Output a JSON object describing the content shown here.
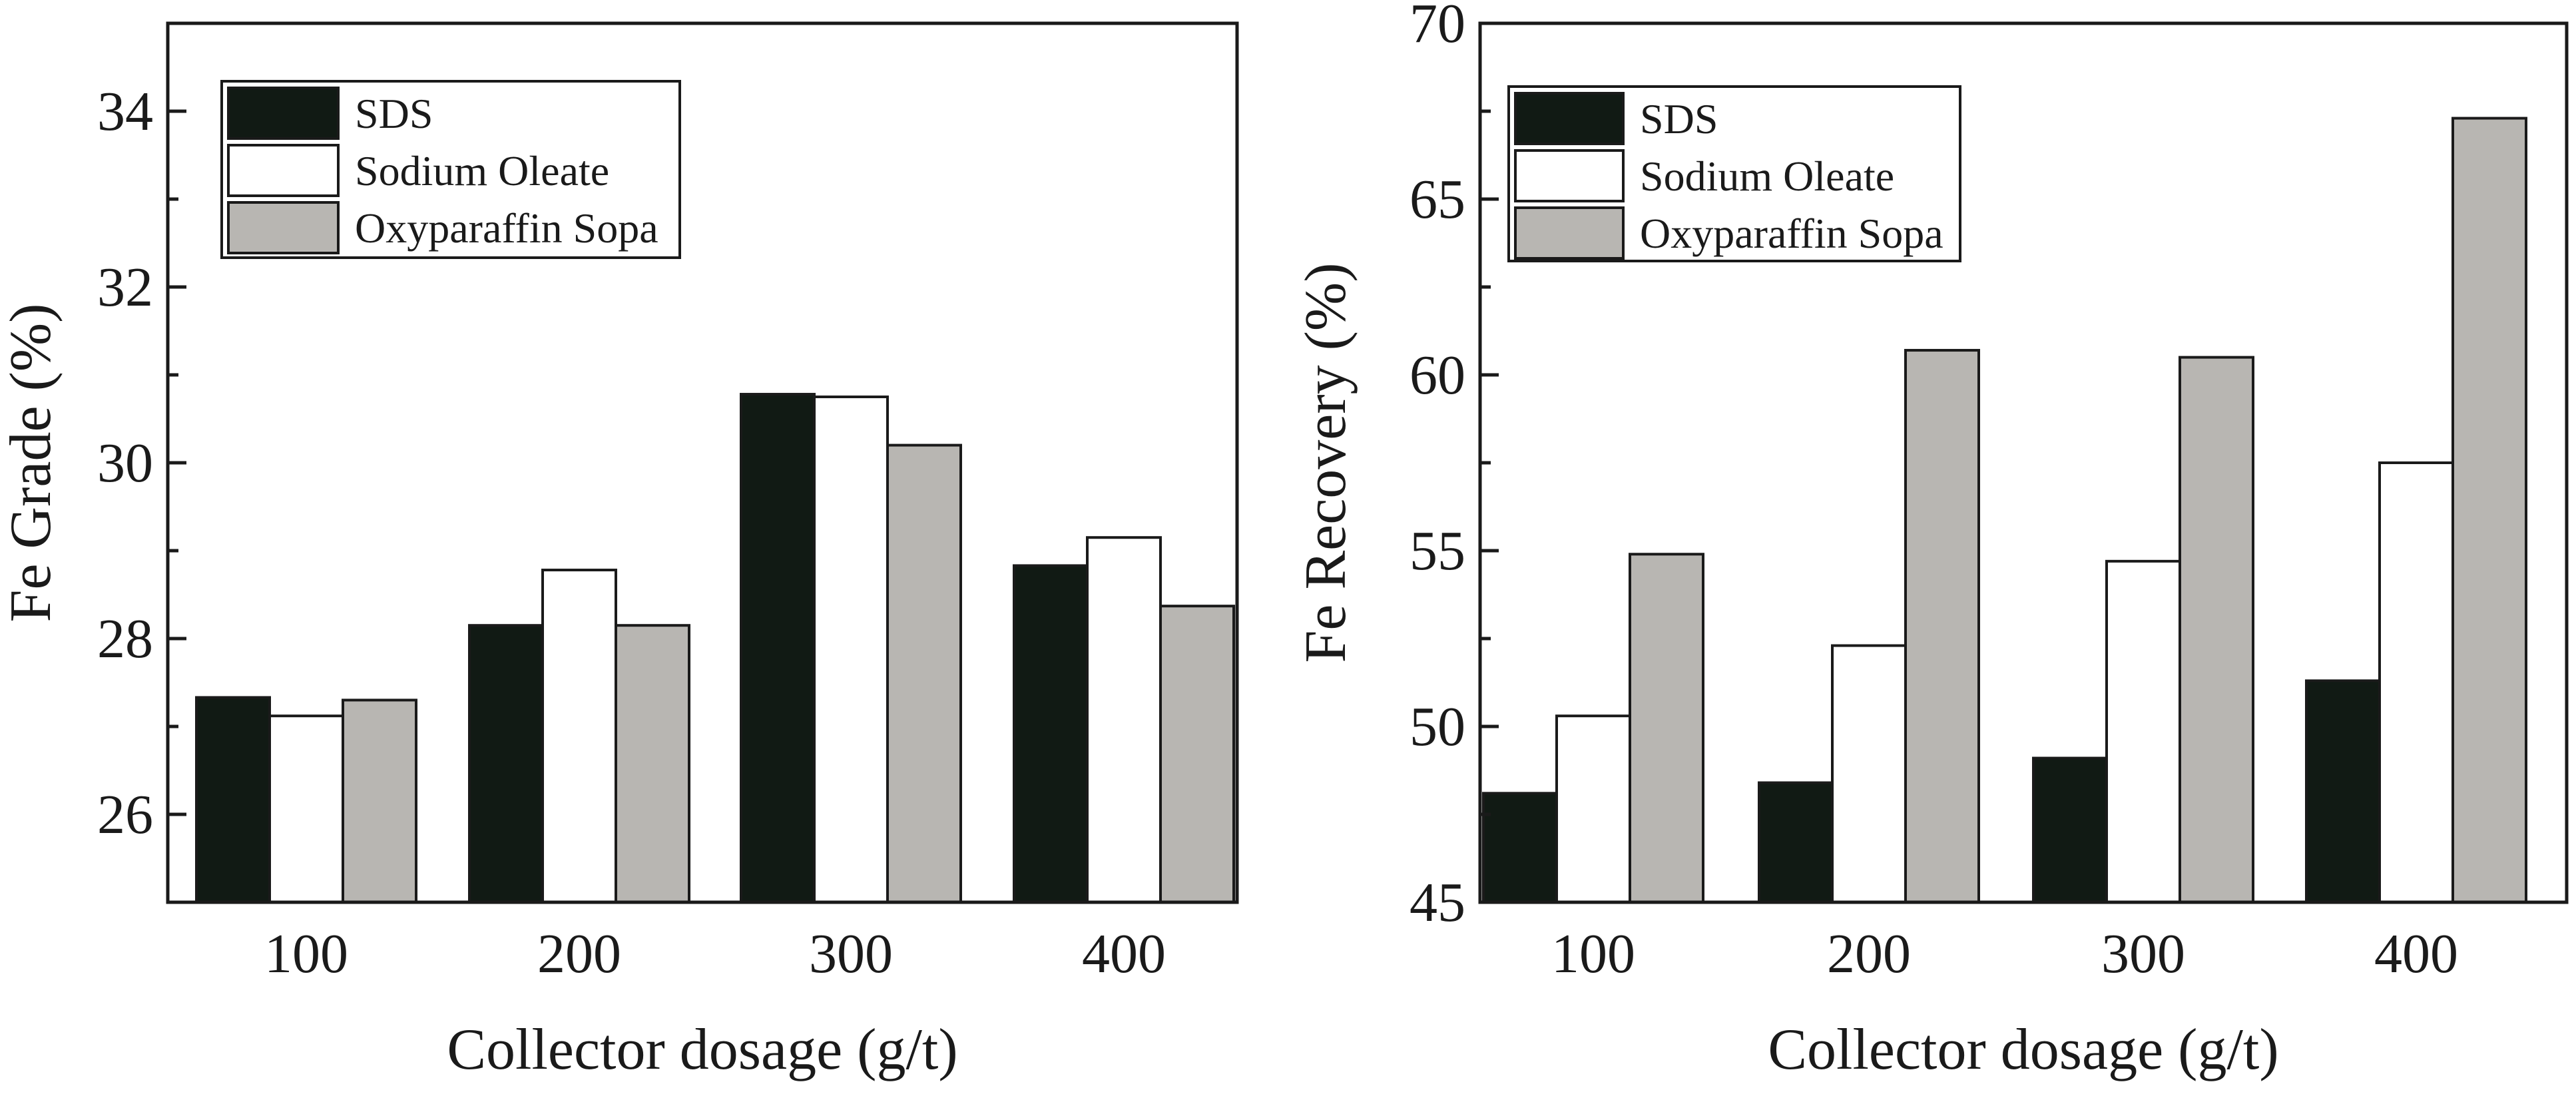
{
  "chart_data": [
    {
      "type": "bar",
      "title": "",
      "xlabel": "Collector dosage (g/t)",
      "ylabel": "Fe  Grade (%)",
      "categories": [
        "100",
        "200",
        "300",
        "400"
      ],
      "ylim": [
        25,
        35
      ],
      "yticks": [
        "26",
        "28",
        "30",
        "32",
        "34"
      ],
      "legend_position": "top-left",
      "series": [
        {
          "name": "SDS",
          "color": "#111a14",
          "values": [
            27.33,
            28.15,
            30.78,
            28.83
          ]
        },
        {
          "name": "Sodium Oleate",
          "color": "#ffffff",
          "values": [
            27.12,
            28.78,
            30.75,
            29.15
          ]
        },
        {
          "name": "Oxyparaffin Sopa",
          "color": "#b8b6b2",
          "values": [
            27.3,
            28.15,
            30.2,
            28.37
          ]
        }
      ]
    },
    {
      "type": "bar",
      "title": "",
      "xlabel": "Collector dosage (g/t)",
      "ylabel": "Fe  Recovery (%)",
      "categories": [
        "100",
        "200",
        "300",
        "400"
      ],
      "ylim": [
        45,
        70
      ],
      "yticks": [
        "45",
        "50",
        "55",
        "60",
        "65",
        "70"
      ],
      "legend_position": "top-left",
      "series": [
        {
          "name": "SDS",
          "color": "#111a14",
          "values": [
            48.1,
            48.4,
            49.1,
            51.3
          ]
        },
        {
          "name": "Sodium Oleate",
          "color": "#ffffff",
          "values": [
            50.3,
            52.3,
            54.7,
            57.5
          ]
        },
        {
          "name": "Oxyparaffin Sopa",
          "color": "#b8b6b2",
          "values": [
            54.9,
            60.7,
            60.5,
            67.3
          ]
        }
      ]
    }
  ]
}
